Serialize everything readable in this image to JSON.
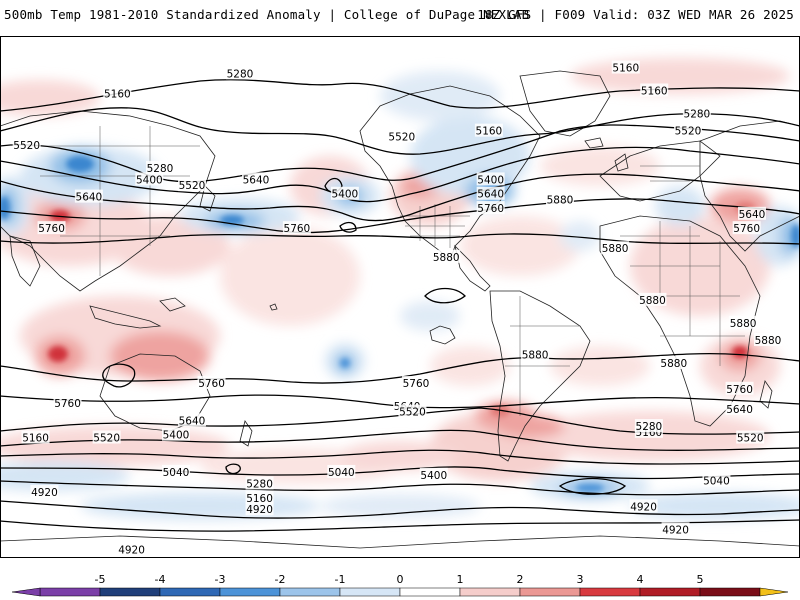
{
  "header": {
    "title_left": "500mb Temp 1981-2010 Standardized Anomaly | College of DuPage NEXLAB",
    "title_right": "18Z GFS | F009 Valid: 03Z WED MAR 26 2025"
  },
  "colors": {
    "contour": "#000000",
    "land_outline": "#222222",
    "border": "#555555",
    "warm_light": "#f8d7d5",
    "warm_mid": "#ee9f9b",
    "warm_strong": "#d0333a",
    "cold_light": "#d3e4f4",
    "cold_mid": "#8dbde6",
    "cold_strong": "#3a86cf"
  },
  "contour_labels": [
    {
      "text": "5280",
      "lon": -45,
      "lat": 77
    },
    {
      "text": "5160",
      "lon": -114,
      "lat": 70
    },
    {
      "text": "5520",
      "lon": -165,
      "lat": 52
    },
    {
      "text": "5280",
      "lon": -90,
      "lat": 44
    },
    {
      "text": "5400",
      "lon": -96,
      "lat": 40
    },
    {
      "text": "5520",
      "lon": -72,
      "lat": 38
    },
    {
      "text": "5640",
      "lon": -130,
      "lat": 34
    },
    {
      "text": "5760",
      "lon": -151,
      "lat": 23
    },
    {
      "text": "5640",
      "lon": -36,
      "lat": 40
    },
    {
      "text": "5760",
      "lon": -13,
      "lat": 23
    },
    {
      "text": "5400",
      "lon": 14,
      "lat": 35
    },
    {
      "text": "5520",
      "lon": 46,
      "lat": 55
    },
    {
      "text": "5160",
      "lon": 95,
      "lat": 57
    },
    {
      "text": "5400",
      "lon": 96,
      "lat": 40
    },
    {
      "text": "5640",
      "lon": 96,
      "lat": 35
    },
    {
      "text": "5760",
      "lon": 96,
      "lat": 30
    },
    {
      "text": "5880",
      "lon": 135,
      "lat": 33
    },
    {
      "text": "5880",
      "lon": 71,
      "lat": 13
    },
    {
      "text": "5160",
      "lon": 172,
      "lat": 79
    },
    {
      "text": "5160",
      "lon": 188,
      "lat": 71
    },
    {
      "text": "5280",
      "lon": 212,
      "lat": 63
    },
    {
      "text": "5520",
      "lon": 207,
      "lat": 57
    },
    {
      "text": "5640",
      "lon": 243,
      "lat": 28
    },
    {
      "text": "5760",
      "lon": 240,
      "lat": 23
    },
    {
      "text": "5880",
      "lon": 187,
      "lat": -2
    },
    {
      "text": "5880",
      "lon": 121,
      "lat": -21
    },
    {
      "text": "5880",
      "lon": 199,
      "lat": -24
    },
    {
      "text": "5880",
      "lon": 252,
      "lat": -16
    },
    {
      "text": "5760",
      "lon": -61,
      "lat": -31
    },
    {
      "text": "5760",
      "lon": 54,
      "lat": -31
    },
    {
      "text": "5760",
      "lon": -142,
      "lat": -38
    },
    {
      "text": "5640",
      "lon": -72,
      "lat": -44
    },
    {
      "text": "5640",
      "lon": 49,
      "lat": -39
    },
    {
      "text": "5520",
      "lon": 52,
      "lat": -41
    },
    {
      "text": "5400",
      "lon": -81,
      "lat": -49
    },
    {
      "text": "5520",
      "lon": -120,
      "lat": -50
    },
    {
      "text": "5160",
      "lon": -160,
      "lat": -50
    },
    {
      "text": "5040",
      "lon": -81,
      "lat": -62
    },
    {
      "text": "5040",
      "lon": 12,
      "lat": -62
    },
    {
      "text": "5280",
      "lon": -34,
      "lat": -66
    },
    {
      "text": "5160",
      "lon": -34,
      "lat": -71
    },
    {
      "text": "4920",
      "lon": -34,
      "lat": -75
    },
    {
      "text": "4920",
      "lon": -155,
      "lat": -69
    },
    {
      "text": "4920",
      "lon": -106,
      "lat": -89
    },
    {
      "text": "5400",
      "lon": 64,
      "lat": -63
    },
    {
      "text": "5160",
      "lon": 185,
      "lat": -48
    },
    {
      "text": "5280",
      "lon": 185,
      "lat": -46
    },
    {
      "text": "5520",
      "lon": 242,
      "lat": -50
    },
    {
      "text": "5640",
      "lon": 236,
      "lat": -40
    },
    {
      "text": "5760",
      "lon": 236,
      "lat": -33
    },
    {
      "text": "5040",
      "lon": 223,
      "lat": -65
    },
    {
      "text": "4920",
      "lon": 182,
      "lat": -74
    },
    {
      "text": "4920",
      "lon": 200,
      "lat": -82
    },
    {
      "text": "5880",
      "lon": 238,
      "lat": -10
    },
    {
      "text": "5880",
      "lon": 166,
      "lat": 16
    }
  ],
  "colorbar": {
    "ticks": [
      "-5",
      "-4",
      "-3",
      "-2",
      "-1",
      "0",
      "1",
      "2",
      "3",
      "4",
      "5"
    ],
    "min": -6,
    "max": 6,
    "bins": [
      {
        "from": -6,
        "to": -5,
        "color": "#7b3fa8"
      },
      {
        "from": -5,
        "to": -4,
        "color": "#1f3f7a"
      },
      {
        "from": -4,
        "to": -3,
        "color": "#2e68b5"
      },
      {
        "from": -3,
        "to": -2,
        "color": "#4c93d8"
      },
      {
        "from": -2,
        "to": -1,
        "color": "#9cc4ea"
      },
      {
        "from": -1,
        "to": 0,
        "color": "#d6e6f6"
      },
      {
        "from": 0,
        "to": 1,
        "color": "#ffffff"
      },
      {
        "from": 1,
        "to": 2,
        "color": "#f5cdcb"
      },
      {
        "from": 2,
        "to": 3,
        "color": "#eb9894"
      },
      {
        "from": 3,
        "to": 4,
        "color": "#d83a40"
      },
      {
        "from": 4,
        "to": 5,
        "color": "#b01c26"
      },
      {
        "from": 5,
        "to": 6,
        "color": "#7a0d18"
      }
    ],
    "end_color": "#f2c01a"
  }
}
